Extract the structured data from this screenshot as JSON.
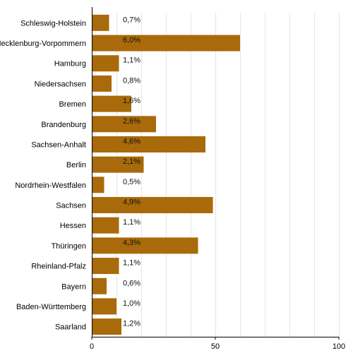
{
  "chart_data": {
    "type": "bar",
    "orientation": "horizontal",
    "categories": [
      "Schleswig-Holstein",
      "Mecklenburg-Vorpommern",
      "Hamburg",
      "Niedersachsen",
      "Bremen",
      "Brandenburg",
      "Sachsen-Anhalt",
      "Berlin",
      "Nordrhein-Westfalen",
      "Sachsen",
      "Hessen",
      "Thüringen",
      "Rheinland-Pfalz",
      "Bayern",
      "Baden-Württemberg",
      "Saarland"
    ],
    "values": [
      7,
      60,
      11,
      8,
      16,
      26,
      46,
      21,
      5,
      49,
      11,
      43,
      11,
      6,
      10,
      12
    ],
    "data_labels": [
      "0,7%",
      "6,0%",
      "1,1%",
      "0,8%",
      "1,6%",
      "2,6%",
      "4,6%",
      "2,1%",
      "0,5%",
      "4,9%",
      "1,1%",
      "4,3%",
      "1,1%",
      "0,6%",
      "1,0%",
      "1,2%"
    ],
    "xlim": [
      0,
      100
    ],
    "x_ticks": [
      "0",
      "50",
      "100"
    ],
    "grid": true,
    "bar_color": "#a86a0a",
    "grid_color": "#e6e6e6"
  }
}
